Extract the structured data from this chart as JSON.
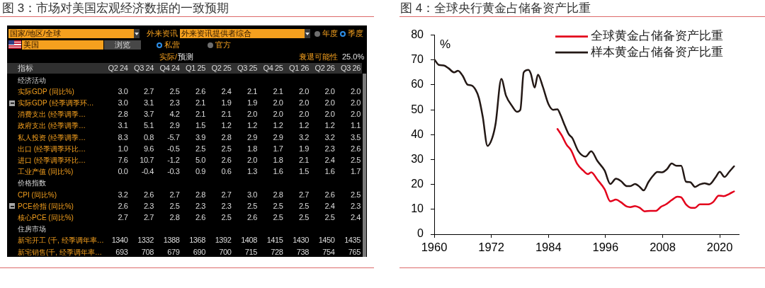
{
  "chart_data": [
    {
      "type": "heatmap",
      "title": "图 3：市场对美国宏观经济数据的一致预期",
      "ylabel": "指标",
      "categories": [
        "Q2 24",
        "Q3 24",
        "Q4 24",
        "Q1 25",
        "Q2 25",
        "Q3 25",
        "Q4 25",
        "Q1 26",
        "Q2 26",
        "Q3 26"
      ],
      "y_categories": [
        "经济活动",
        "实际GDP (同比%)",
        "实际GDP (经季调季环…",
        "消费支出 (经季调季…",
        "政府支出 (经季调季…",
        "私人投资 (经季调季…",
        "出口 (经季调季环比…",
        "进口 (经季调季环比…",
        "工业产值 (同比%)",
        "价格指数",
        "CPI (同比%)",
        "PCE价指 (同比%)",
        "核心PCE (同比%)",
        "住房市场",
        "新宅开工 (千, 经季调年率…",
        "新宅销售(千, 经季调年率…"
      ],
      "cells": [
        [
          null,
          null,
          null,
          null,
          null,
          null,
          null,
          null,
          null,
          null
        ],
        [
          3.0,
          2.7,
          2.5,
          2.6,
          2.4,
          2.1,
          2.1,
          2.0,
          2.0,
          2.0
        ],
        [
          3.0,
          3.1,
          2.3,
          2.1,
          1.9,
          1.9,
          2.0,
          2.0,
          2.0,
          2.0
        ],
        [
          2.8,
          3.7,
          4.2,
          2.1,
          2.1,
          2.0,
          2.0,
          2.0,
          2.0,
          2.0
        ],
        [
          3.1,
          5.1,
          2.9,
          1.5,
          1.2,
          1.2,
          1.2,
          1.2,
          1.2,
          1.1
        ],
        [
          8.3,
          0.8,
          -5.7,
          3.9,
          2.8,
          2.9,
          2.9,
          3.2,
          3.2,
          3.5
        ],
        [
          1.0,
          9.6,
          -0.5,
          2.5,
          2.5,
          1.8,
          1.7,
          1.9,
          2.3,
          2.6
        ],
        [
          7.6,
          10.7,
          -1.2,
          5.0,
          2.6,
          2.0,
          1.8,
          2.1,
          2.4,
          2.5
        ],
        [
          0.0,
          -0.4,
          -0.3,
          0.9,
          0.6,
          1.3,
          1.6,
          1.5,
          1.6,
          1.7
        ],
        [
          null,
          null,
          null,
          null,
          null,
          null,
          null,
          null,
          null,
          null
        ],
        [
          3.2,
          2.6,
          2.7,
          2.8,
          2.7,
          3.0,
          2.8,
          2.7,
          2.6,
          2.5
        ],
        [
          2.6,
          2.3,
          2.5,
          2.3,
          2.3,
          2.5,
          2.5,
          2.5,
          2.4,
          2.3
        ],
        [
          2.7,
          2.7,
          2.8,
          2.6,
          2.5,
          2.6,
          2.5,
          2.5,
          2.5,
          2.4
        ],
        [
          null,
          null,
          null,
          null,
          null,
          null,
          null,
          null,
          null,
          null
        ],
        [
          1340,
          1332,
          1388,
          1368,
          1392,
          1408,
          1415,
          1430,
          1450,
          1435
        ],
        [
          693,
          708,
          679,
          690,
          700,
          715,
          728,
          738,
          754,
          765
        ]
      ],
      "cell_labels": [
        [
          null,
          null,
          null,
          null,
          null,
          null,
          null,
          null,
          null,
          null
        ],
        [
          "3.0",
          "2.7",
          "2.5",
          "2.6",
          "2.4",
          "2.1",
          "2.1",
          "2.0",
          "2.0",
          "2.0"
        ],
        [
          "3.0",
          "3.1",
          "2.3",
          "2.1",
          "1.9",
          "1.9",
          "2.0",
          "2.0",
          "2.0",
          "2.0"
        ],
        [
          "2.8",
          "3.7",
          "4.2",
          "2.1",
          "2.1",
          "2.0",
          "2.0",
          "2.0",
          "2.0",
          "2.0"
        ],
        [
          "3.1",
          "5.1",
          "2.9",
          "1.5",
          "1.2",
          "1.2",
          "1.2",
          "1.2",
          "1.2",
          "1.1"
        ],
        [
          "8.3",
          "0.8",
          "-5.7",
          "3.9",
          "2.8",
          "2.9",
          "2.9",
          "3.2",
          "3.2",
          "3.5"
        ],
        [
          "1.0",
          "9.6",
          "-0.5",
          "2.5",
          "2.5",
          "1.8",
          "1.7",
          "1.9",
          "2.3",
          "2.6"
        ],
        [
          "7.6",
          "10.7",
          "-1.2",
          "5.0",
          "2.6",
          "2.0",
          "1.8",
          "2.1",
          "2.4",
          "2.5"
        ],
        [
          "0.0",
          "-0.4",
          "-0.3",
          "0.9",
          "0.6",
          "1.3",
          "1.6",
          "1.5",
          "1.6",
          "1.7"
        ],
        [
          null,
          null,
          null,
          null,
          null,
          null,
          null,
          null,
          null,
          null
        ],
        [
          "3.2",
          "2.6",
          "2.7",
          "2.8",
          "2.7",
          "3.0",
          "2.8",
          "2.7",
          "2.6",
          "2.5"
        ],
        [
          "2.6",
          "2.3",
          "2.5",
          "2.3",
          "2.3",
          "2.5",
          "2.5",
          "2.5",
          "2.4",
          "2.3"
        ],
        [
          "2.7",
          "2.7",
          "2.8",
          "2.6",
          "2.5",
          "2.6",
          "2.5",
          "2.5",
          "2.5",
          "2.4"
        ],
        [
          null,
          null,
          null,
          null,
          null,
          null,
          null,
          null,
          null,
          null
        ],
        [
          "1340",
          "1332",
          "1388",
          "1368",
          "1392",
          "1408",
          "1415",
          "1430",
          "1450",
          "1435"
        ],
        [
          "693",
          "708",
          "679",
          "690",
          "700",
          "715",
          "728",
          "738",
          "754",
          "765"
        ]
      ],
      "annotations": [
        "国家/地区/全球",
        "外来资讯",
        "外来资讯提供者综合",
        "年度",
        "季度",
        "美国",
        "浏览",
        "私营",
        "官方",
        "实际/",
        "预测",
        "衰退可能性",
        "25.0%"
      ]
    },
    {
      "type": "line",
      "title": "图 4：全球央行黄金占储备资产比重",
      "ylabel": "%",
      "xlim": [
        1960,
        2024
      ],
      "xticks": [
        1960,
        1972,
        1984,
        1996,
        2008,
        2020
      ],
      "ylim": [
        0,
        80
      ],
      "yticks": [
        0,
        10,
        20,
        30,
        40,
        50,
        60,
        70,
        80
      ],
      "legend": "top right",
      "line_style": "solid",
      "series": [
        {
          "name": "全球黄金占储备资产比重",
          "color": "#e3001b",
          "x": [
            1985.9,
            1986.8,
            1987.8,
            1988.8,
            1990,
            1991.3,
            1992.3,
            1993,
            1994.3,
            1995.8,
            1997,
            1998.2,
            1999.2,
            2000.5,
            2001.2,
            2002.2,
            2003.2,
            2004.2,
            2005.4,
            2006.6,
            2007.7,
            2008.7,
            2009.9,
            2011.1,
            2011.9,
            2012.9,
            2014.1,
            2014.8,
            2015.8,
            2017.6,
            2018.6,
            2019.8,
            2020.8,
            2022,
            2023
          ],
          "values": [
            42.3,
            39.7,
            36,
            33.6,
            28.4,
            25.6,
            24.2,
            24.9,
            21.9,
            18.1,
            13.2,
            13.9,
            12.9,
            11.1,
            10.9,
            11.3,
            10.6,
            9.2,
            9.4,
            9.4,
            11.1,
            12,
            13.7,
            15.1,
            14.8,
            12,
            10.6,
            10.6,
            12,
            12,
            12.9,
            15.5,
            15.3,
            16.2,
            17.2
          ]
        },
        {
          "name": "样本黄金占储备资产比重",
          "color": "#231815",
          "x": [
            1960,
            1961,
            1962,
            1963,
            1964.2,
            1965,
            1966,
            1967,
            1967.8,
            1968.7,
            1969.4,
            1970.2,
            1971.2,
            1972.2,
            1972.9,
            1974.1,
            1975.1,
            1976.4,
            1977.4,
            1978.1,
            1978.8,
            1979.8,
            1980.3,
            1981.1,
            1981.8,
            1982.8,
            1984,
            1985,
            1985.9,
            1986.5,
            1987.5,
            1988.3,
            1989,
            1990.3,
            1991.8,
            1993,
            1994.3,
            1995.8,
            1997,
            1998.2,
            1999.2,
            2000.5,
            2001.2,
            2002.2,
            2003.2,
            2004,
            2005,
            2005.9,
            2006.9,
            2007.9,
            2008.9,
            2009.9,
            2010.9,
            2011.9,
            2012.9,
            2013.8,
            2014.8,
            2015.8,
            2016.8,
            2017.8,
            2019.1,
            2020,
            2021,
            2022,
            2023
          ],
          "values": [
            70.3,
            68,
            67.8,
            66.7,
            65,
            65.7,
            63.6,
            60.1,
            59.8,
            58,
            54.7,
            47.2,
            35.5,
            38.7,
            44.4,
            62.4,
            55.6,
            51.4,
            49.2,
            50,
            65,
            66,
            64.5,
            58.9,
            64.1,
            59.4,
            52.3,
            50,
            50.2,
            48.1,
            43.4,
            40.1,
            38.7,
            33.3,
            31.2,
            33.3,
            29.4,
            25.6,
            20.2,
            22.3,
            21.4,
            19.3,
            19.3,
            20.2,
            19,
            17.6,
            20.9,
            23.3,
            25,
            24.9,
            26.1,
            28.4,
            27.5,
            27.5,
            21.1,
            20.9,
            19,
            20,
            20.5,
            20,
            22.8,
            25.1,
            23,
            25.1,
            27.3
          ]
        }
      ]
    }
  ]
}
